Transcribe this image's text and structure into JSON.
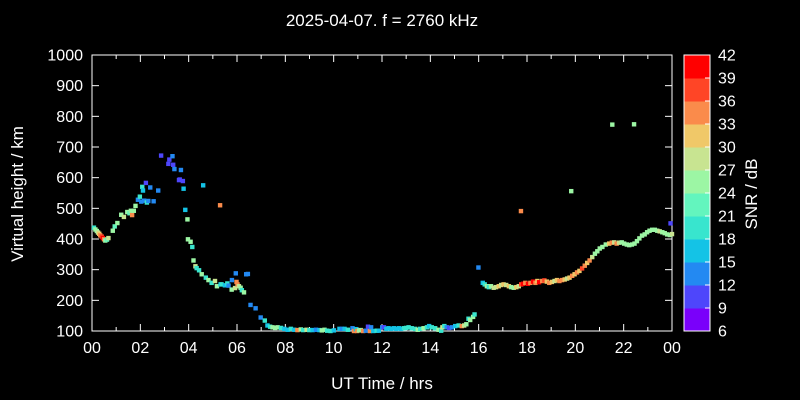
{
  "title": "2025-04-07. f = 2760 kHz",
  "colors": {
    "background": "#000000",
    "foreground": "#ffffff"
  },
  "chart_data": {
    "type": "scatter",
    "title": "2025-04-07. f = 2760 kHz",
    "xlabel": "UT Time / hrs",
    "ylabel": "Virtual height / km",
    "xlim": [
      0,
      24
    ],
    "ylim": [
      100,
      1000
    ],
    "grid": false,
    "marker": "square",
    "x_major_tick_labels": [
      "00",
      "02",
      "04",
      "06",
      "08",
      "10",
      "12",
      "14",
      "16",
      "18",
      "20",
      "22",
      "00"
    ],
    "x_major_tick_values": [
      0,
      2,
      4,
      6,
      8,
      10,
      12,
      14,
      16,
      18,
      20,
      22,
      24
    ],
    "x_minor_step": 1,
    "y_tick_values": [
      100,
      200,
      300,
      400,
      500,
      600,
      700,
      800,
      900,
      1000
    ],
    "colorbar": {
      "label": "SNR / dB",
      "min": 6,
      "max": 42,
      "step": 3,
      "tick_labels_top_to_bottom": [
        "42",
        "39",
        "36",
        "33",
        "30",
        "27",
        "24",
        "21",
        "18",
        "15",
        "12",
        "9",
        "6"
      ],
      "colors_low_to_high": [
        "#7A00FA",
        "#4E46FB",
        "#2389F2",
        "#14C3E6",
        "#38E5CE",
        "#63F5BE",
        "#9CF6A4",
        "#C8E491",
        "#F0C868",
        "#FA8B4B",
        "#FF4526",
        "#FF0000"
      ]
    },
    "points_format": [
      "ut_hours",
      "virtual_height_km",
      "snr_db"
    ],
    "points": [
      [
        0.08,
        437,
        19
      ],
      [
        0.14,
        431,
        25
      ],
      [
        0.2,
        426,
        25
      ],
      [
        0.25,
        421,
        28
      ],
      [
        0.3,
        417,
        31
      ],
      [
        0.34,
        412,
        34
      ],
      [
        0.4,
        408,
        37
      ],
      [
        0.45,
        403,
        40
      ],
      [
        0.5,
        399,
        34
      ],
      [
        0.55,
        395,
        25
      ],
      [
        0.62,
        398,
        22
      ],
      [
        0.68,
        403,
        28
      ],
      [
        0.86,
        427,
        25
      ],
      [
        0.94,
        441,
        22
      ],
      [
        1.05,
        452,
        25
      ],
      [
        1.21,
        479,
        25
      ],
      [
        1.32,
        472,
        28
      ],
      [
        1.46,
        488,
        25
      ],
      [
        1.55,
        484,
        22
      ],
      [
        1.61,
        492,
        25
      ],
      [
        1.66,
        478,
        34
      ],
      [
        1.73,
        492,
        25
      ],
      [
        1.8,
        508,
        25
      ],
      [
        1.9,
        528,
        13
      ],
      [
        1.98,
        538,
        19
      ],
      [
        2.04,
        522,
        13
      ],
      [
        2.08,
        570,
        19
      ],
      [
        2.11,
        558,
        16
      ],
      [
        2.16,
        525,
        13
      ],
      [
        2.23,
        583,
        10
      ],
      [
        2.27,
        519,
        19
      ],
      [
        2.33,
        524,
        13
      ],
      [
        2.41,
        568,
        13
      ],
      [
        2.55,
        523,
        13
      ],
      [
        2.74,
        558,
        13
      ],
      [
        2.86,
        672,
        10
      ],
      [
        3.16,
        645,
        10
      ],
      [
        3.2,
        659,
        10
      ],
      [
        3.33,
        670,
        13
      ],
      [
        3.36,
        642,
        10
      ],
      [
        3.41,
        628,
        13
      ],
      [
        3.6,
        592,
        10
      ],
      [
        3.63,
        594,
        10
      ],
      [
        3.68,
        625,
        13
      ],
      [
        3.76,
        589,
        10
      ],
      [
        3.79,
        564,
        16
      ],
      [
        3.86,
        495,
        16
      ],
      [
        3.95,
        464,
        25
      ],
      [
        3.97,
        399,
        25
      ],
      [
        4.08,
        391,
        25
      ],
      [
        4.15,
        374,
        19
      ],
      [
        4.2,
        330,
        25
      ],
      [
        4.28,
        311,
        28
      ],
      [
        4.33,
        305,
        19
      ],
      [
        4.43,
        298,
        19
      ],
      [
        4.54,
        285,
        25
      ],
      [
        4.6,
        575,
        16
      ],
      [
        4.71,
        274,
        19
      ],
      [
        4.82,
        266,
        25
      ],
      [
        4.95,
        257,
        19
      ],
      [
        5.09,
        263,
        28
      ],
      [
        5.17,
        246,
        25
      ],
      [
        5.3,
        510,
        34
      ],
      [
        5.32,
        252,
        16
      ],
      [
        5.36,
        252,
        19
      ],
      [
        5.5,
        249,
        16
      ],
      [
        5.6,
        255,
        19
      ],
      [
        5.65,
        248,
        13
      ],
      [
        5.78,
        235,
        25
      ],
      [
        5.79,
        266,
        13
      ],
      [
        5.92,
        240,
        28
      ],
      [
        5.95,
        288,
        13
      ],
      [
        5.98,
        260,
        34
      ],
      [
        6.02,
        252,
        34
      ],
      [
        6.08,
        246,
        28
      ],
      [
        6.15,
        241,
        25
      ],
      [
        6.2,
        233,
        19
      ],
      [
        6.29,
        226,
        25
      ],
      [
        6.38,
        285,
        13
      ],
      [
        6.45,
        286,
        13
      ],
      [
        6.56,
        185,
        13
      ],
      [
        6.77,
        174,
        13
      ],
      [
        6.98,
        144,
        13
      ],
      [
        7.15,
        134,
        19
      ],
      [
        7.26,
        118,
        16
      ],
      [
        7.37,
        114,
        19
      ],
      [
        7.47,
        112,
        25
      ],
      [
        7.58,
        110,
        25
      ],
      [
        7.68,
        112,
        25
      ],
      [
        7.82,
        110,
        19
      ],
      [
        7.96,
        107,
        16
      ],
      [
        8.1,
        104,
        16
      ],
      [
        8.23,
        107,
        19
      ],
      [
        8.37,
        104,
        16
      ],
      [
        8.5,
        103,
        34
      ],
      [
        8.64,
        105,
        25
      ],
      [
        8.74,
        103,
        19
      ],
      [
        8.88,
        104,
        28
      ],
      [
        8.99,
        103,
        19
      ],
      [
        9.13,
        103,
        16
      ],
      [
        9.27,
        104,
        13
      ],
      [
        9.41,
        103,
        16
      ],
      [
        9.51,
        102,
        25
      ],
      [
        9.62,
        104,
        25
      ],
      [
        9.73,
        101,
        19
      ],
      [
        9.87,
        100,
        19
      ],
      [
        10.01,
        102,
        16
      ],
      [
        10.24,
        107,
        16
      ],
      [
        10.34,
        107,
        13
      ],
      [
        10.45,
        107,
        16
      ],
      [
        10.59,
        104,
        19
      ],
      [
        10.78,
        109,
        13
      ],
      [
        10.84,
        100,
        34
      ],
      [
        10.92,
        106,
        16
      ],
      [
        10.97,
        100,
        34
      ],
      [
        11.05,
        102,
        25
      ],
      [
        11.12,
        103,
        25
      ],
      [
        11.22,
        100,
        34
      ],
      [
        11.33,
        101,
        13
      ],
      [
        11.42,
        114,
        10
      ],
      [
        11.5,
        100,
        34
      ],
      [
        11.55,
        112,
        13
      ],
      [
        11.64,
        100,
        16
      ],
      [
        11.78,
        101,
        19
      ],
      [
        11.87,
        101,
        16
      ],
      [
        12.01,
        112,
        13
      ],
      [
        12.08,
        112,
        10
      ],
      [
        12.18,
        107,
        16
      ],
      [
        12.27,
        109,
        16
      ],
      [
        12.38,
        107,
        16
      ],
      [
        12.49,
        109,
        16
      ],
      [
        12.59,
        107,
        16
      ],
      [
        12.7,
        109,
        16
      ],
      [
        12.79,
        107,
        16
      ],
      [
        12.91,
        109,
        19
      ],
      [
        13.0,
        110,
        19
      ],
      [
        13.1,
        112,
        19
      ],
      [
        13.23,
        109,
        19
      ],
      [
        13.37,
        107,
        19
      ],
      [
        13.48,
        104,
        25
      ],
      [
        13.58,
        107,
        19
      ],
      [
        13.72,
        109,
        25
      ],
      [
        13.86,
        112,
        19
      ],
      [
        13.95,
        116,
        16
      ],
      [
        14.06,
        112,
        19
      ],
      [
        14.2,
        109,
        19
      ],
      [
        14.34,
        104,
        25
      ],
      [
        14.45,
        101,
        19
      ],
      [
        14.5,
        112,
        28
      ],
      [
        14.58,
        116,
        19
      ],
      [
        14.68,
        112,
        13
      ],
      [
        14.78,
        110,
        10
      ],
      [
        14.89,
        112,
        13
      ],
      [
        15.03,
        116,
        16
      ],
      [
        15.17,
        118,
        19
      ],
      [
        15.3,
        116,
        34
      ],
      [
        15.4,
        118,
        28
      ],
      [
        15.49,
        122,
        25
      ],
      [
        15.58,
        140,
        19
      ],
      [
        15.65,
        136,
        25
      ],
      [
        15.77,
        146,
        25
      ],
      [
        15.83,
        154,
        19
      ],
      [
        15.99,
        307,
        13
      ],
      [
        16.17,
        257,
        16
      ],
      [
        16.25,
        252,
        19
      ],
      [
        16.34,
        246,
        25
      ],
      [
        16.42,
        243,
        19
      ],
      [
        16.51,
        246,
        25
      ],
      [
        16.62,
        241,
        28
      ],
      [
        16.72,
        243,
        28
      ],
      [
        16.83,
        246,
        31
      ],
      [
        16.93,
        250,
        28
      ],
      [
        17.03,
        252,
        31
      ],
      [
        17.14,
        250,
        28
      ],
      [
        17.25,
        246,
        31
      ],
      [
        17.34,
        243,
        25
      ],
      [
        17.45,
        241,
        25
      ],
      [
        17.56,
        243,
        31
      ],
      [
        17.66,
        246,
        28
      ],
      [
        17.75,
        491,
        34
      ],
      [
        17.76,
        252,
        37
      ],
      [
        17.84,
        254,
        40
      ],
      [
        17.93,
        257,
        34
      ],
      [
        18.04,
        254,
        40
      ],
      [
        18.14,
        257,
        34
      ],
      [
        18.25,
        261,
        40
      ],
      [
        18.35,
        257,
        34
      ],
      [
        18.43,
        263,
        31
      ],
      [
        18.5,
        259,
        40
      ],
      [
        18.63,
        263,
        34
      ],
      [
        18.72,
        265,
        37
      ],
      [
        18.82,
        261,
        31
      ],
      [
        18.92,
        257,
        34
      ],
      [
        19.03,
        260,
        31
      ],
      [
        19.14,
        263,
        28
      ],
      [
        19.24,
        266,
        31
      ],
      [
        19.34,
        263,
        34
      ],
      [
        19.45,
        266,
        34
      ],
      [
        19.56,
        268,
        31
      ],
      [
        19.66,
        271,
        28
      ],
      [
        19.76,
        274,
        31
      ],
      [
        19.83,
        556,
        25
      ],
      [
        19.87,
        280,
        34
      ],
      [
        19.97,
        285,
        31
      ],
      [
        20.07,
        291,
        34
      ],
      [
        20.17,
        296,
        31
      ],
      [
        20.28,
        304,
        37
      ],
      [
        20.39,
        313,
        34
      ],
      [
        20.49,
        322,
        31
      ],
      [
        20.59,
        330,
        34
      ],
      [
        20.7,
        341,
        28
      ],
      [
        20.81,
        352,
        25
      ],
      [
        20.91,
        360,
        25
      ],
      [
        21.01,
        369,
        25
      ],
      [
        21.12,
        374,
        25
      ],
      [
        21.26,
        382,
        25
      ],
      [
        21.4,
        385,
        31
      ],
      [
        21.51,
        388,
        34
      ],
      [
        21.53,
        773,
        25
      ],
      [
        21.61,
        389,
        28
      ],
      [
        21.71,
        385,
        34
      ],
      [
        21.81,
        388,
        28
      ],
      [
        21.92,
        389,
        25
      ],
      [
        22.02,
        385,
        25
      ],
      [
        22.13,
        382,
        25
      ],
      [
        22.23,
        380,
        25
      ],
      [
        22.34,
        382,
        25
      ],
      [
        22.43,
        774,
        25
      ],
      [
        22.45,
        385,
        25
      ],
      [
        22.55,
        393,
        25
      ],
      [
        22.65,
        402,
        25
      ],
      [
        22.76,
        411,
        25
      ],
      [
        22.87,
        415,
        25
      ],
      [
        22.97,
        422,
        25
      ],
      [
        23.07,
        427,
        25
      ],
      [
        23.18,
        430,
        25
      ],
      [
        23.29,
        430,
        25
      ],
      [
        23.39,
        427,
        25
      ],
      [
        23.49,
        425,
        28
      ],
      [
        23.6,
        422,
        25
      ],
      [
        23.7,
        419,
        25
      ],
      [
        23.8,
        415,
        25
      ],
      [
        23.91,
        413,
        25
      ],
      [
        23.94,
        451,
        10
      ],
      [
        24.0,
        416,
        28
      ]
    ]
  }
}
